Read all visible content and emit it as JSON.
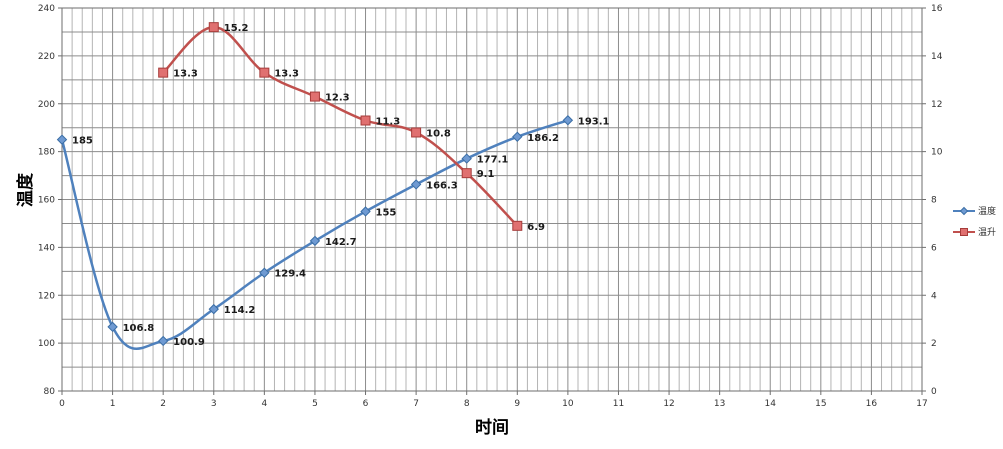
{
  "chart_data": {
    "type": "line",
    "xlabel": "时间",
    "ylabel": "温度",
    "x_ticks": [
      "0",
      "1",
      "2",
      "3",
      "4",
      "5",
      "6",
      "7",
      "8",
      "9",
      "10",
      "11",
      "12",
      "13",
      "14",
      "15",
      "16",
      "17"
    ],
    "xlim": [
      0,
      17
    ],
    "y_left_ticks": [
      "80",
      "100",
      "120",
      "140",
      "160",
      "180",
      "200",
      "220",
      "240"
    ],
    "ylim_left": [
      80,
      240
    ],
    "y_right_ticks": [
      "0",
      "2",
      "4",
      "6",
      "8",
      "10",
      "12",
      "14",
      "16"
    ],
    "ylim_right": [
      0,
      16
    ],
    "grid": true,
    "smooth": true,
    "legend_position": "right",
    "series": [
      {
        "name": "温度",
        "axis": "left",
        "color": "#4f81bd",
        "marker": "diamond",
        "x": [
          0,
          1,
          2,
          3,
          4,
          5,
          6,
          7,
          8,
          9,
          10
        ],
        "values": [
          185,
          106.8,
          100.9,
          114.2,
          129.4,
          142.7,
          155,
          166.3,
          177.1,
          186.2,
          193.1
        ],
        "labels": [
          "185",
          "106.8",
          "100.9",
          "114.2",
          "129.4",
          "142.7",
          "155",
          "166.3",
          "177.1",
          "186.2",
          "193.1"
        ]
      },
      {
        "name": "温升",
        "axis": "right",
        "color": "#c0504d",
        "marker": "square",
        "x": [
          2,
          3,
          4,
          5,
          6,
          7,
          8,
          9
        ],
        "values": [
          13.3,
          15.2,
          13.3,
          12.3,
          11.3,
          10.8,
          9.1,
          6.9
        ],
        "labels": [
          "13.3",
          "15.2",
          "13.3",
          "12.3",
          "11.3",
          "10.8",
          "9.1",
          "6.9"
        ]
      }
    ]
  }
}
